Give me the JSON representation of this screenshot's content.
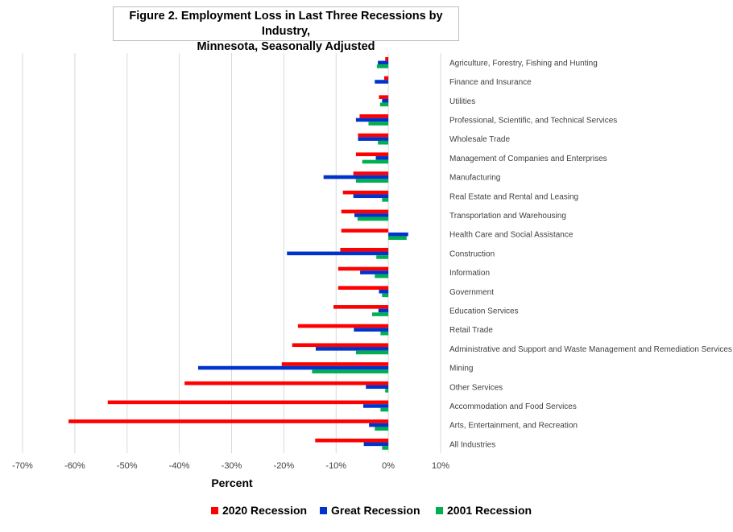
{
  "title_line1": "Figure 2. Employment Loss in Last Three Recessions by Industry,",
  "title_line2": "Minnesota, Seasonally Adjusted",
  "chart_data": {
    "type": "bar",
    "orientation": "horizontal",
    "categories": [
      "Agriculture, Forestry, Fishing and Hunting",
      "Finance and Insurance",
      "Utilities",
      "Professional, Scientific, and Technical Services",
      "Wholesale Trade",
      "Management of Companies and Enterprises",
      "Manufacturing",
      "Real Estate and Rental and Leasing",
      "Transportation and Warehousing",
      "Health Care and Social Assistance",
      "Construction",
      "Information",
      "Government",
      "Education Services",
      "Retail Trade",
      "Administrative and Support and Waste Management and Remediation Services",
      "Mining",
      "Other Services",
      "Accommodation and Food Services",
      "Arts, Entertainment, and Recreation",
      "All Industries"
    ],
    "series": [
      {
        "name": "2020 Recession",
        "color": "#ff0000",
        "values": [
          -0.6,
          -0.8,
          -1.8,
          -5.5,
          -5.8,
          -6.2,
          -6.7,
          -8.7,
          -9.0,
          -9.0,
          -9.2,
          -9.6,
          -9.6,
          -10.5,
          -17.3,
          -18.4,
          -20.4,
          -39.0,
          -53.7,
          -61.2,
          -14.0
        ]
      },
      {
        "name": "Great Recession",
        "color": "#0033cc",
        "values": [
          -2.0,
          -2.6,
          -1.2,
          -6.2,
          -5.8,
          -2.4,
          -12.4,
          -6.7,
          -6.5,
          3.8,
          -19.4,
          -5.4,
          -1.8,
          -1.9,
          -6.6,
          -13.9,
          -36.4,
          -4.3,
          -4.8,
          -3.7,
          -4.7
        ]
      },
      {
        "name": "2001 Recession",
        "color": "#00b050",
        "values": [
          -2.2,
          0.0,
          -1.6,
          -3.8,
          -2.0,
          -5.0,
          -6.2,
          -1.2,
          -5.9,
          3.5,
          -2.3,
          -2.6,
          -1.2,
          -3.1,
          -1.5,
          -6.2,
          -14.6,
          -0.6,
          -1.5,
          -2.6,
          -1.2
        ]
      }
    ],
    "xlabel": "Percent",
    "xlim": [
      -70,
      10
    ],
    "xticks": [
      -70,
      -60,
      -50,
      -40,
      -30,
      -20,
      -10,
      0,
      10
    ],
    "xtick_labels": [
      "-70%",
      "-60%",
      "-50%",
      "-40%",
      "-30%",
      "-20%",
      "-10%",
      "0%",
      "10%"
    ],
    "grid": true,
    "legend_position": "bottom"
  }
}
